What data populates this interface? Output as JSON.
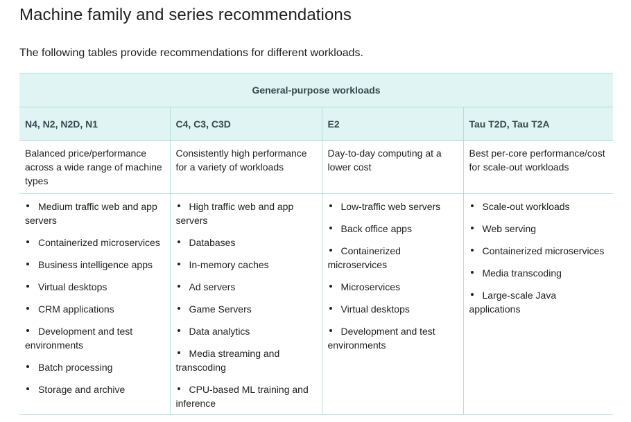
{
  "page": {
    "title": "Machine family and series recommendations",
    "intro": "The following tables provide recommendations for different workloads."
  },
  "table": {
    "group_header": "General-purpose workloads",
    "columns": [
      {
        "header": "N4, N2, N2D, N1",
        "description": "Balanced price/performance across a wide range of machine types",
        "uses": [
          "Medium traffic web and app servers",
          "Containerized microservices",
          "Business intelligence apps",
          "Virtual desktops",
          "CRM applications",
          "Development and test environments",
          "Batch processing",
          "Storage and archive"
        ]
      },
      {
        "header": "C4, C3, C3D",
        "description": "Consistently high performance for a variety of workloads",
        "uses": [
          "High traffic web and app servers",
          "Databases",
          "In-memory caches",
          "Ad servers",
          "Game Servers",
          "Data analytics",
          "Media streaming and transcoding",
          "CPU-based ML training and inference"
        ]
      },
      {
        "header": "E2",
        "description": "Day-to-day computing at a lower cost",
        "uses": [
          "Low-traffic web servers",
          "Back office apps",
          "Containerized microservices",
          "Microservices",
          "Virtual desktops",
          "Development and test environments"
        ]
      },
      {
        "header": "Tau T2D, Tau T2A",
        "description": "Best per-core performance/cost for scale-out workloads",
        "uses": [
          "Scale-out workloads",
          "Web serving",
          "Containerized microservices",
          "Media transcoding",
          "Large-scale Java applications"
        ]
      }
    ]
  },
  "colors": {
    "header_background": "#e0f4f3",
    "border": "#b2dfdb",
    "text": "#202124"
  }
}
